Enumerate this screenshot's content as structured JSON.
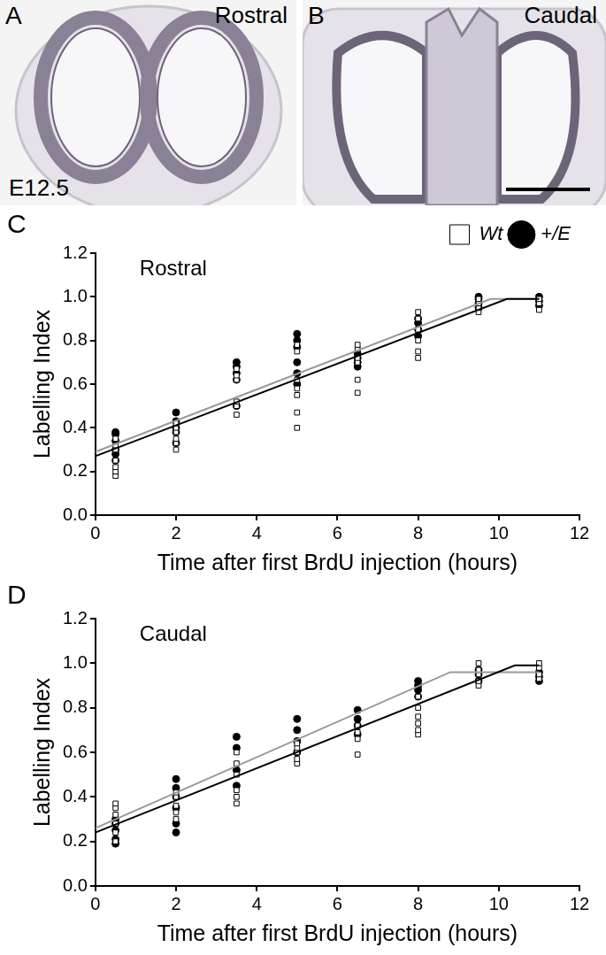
{
  "panels": [
    {
      "panel": "A",
      "label": "Rostral",
      "stage": "E12.5"
    },
    {
      "panel": "B",
      "label": "Caudal"
    }
  ],
  "chart_data": [
    {
      "panel": "C",
      "type": "scatter",
      "title": "Rostral",
      "x_label": "Time after first BrdU injection (hours)",
      "y_label": "Labelling Index",
      "xlim": [
        0,
        12
      ],
      "xticks": [
        0,
        2,
        4,
        6,
        8,
        10,
        12
      ],
      "ylim": [
        0,
        1.2
      ],
      "yticks": [
        {
          "value": 0,
          "label": "0.0"
        },
        0.2,
        0.4,
        0.6,
        0.8,
        {
          "value": 1,
          "label": "1.0"
        },
        1.2
      ],
      "grid": false,
      "legend": "top right",
      "series": [
        {
          "name": "Wt",
          "color": "#000000",
          "marker": "open_square",
          "x": [
            0.5,
            0.5,
            0.5,
            0.5,
            0.5,
            0.5,
            0.5,
            2,
            2,
            2,
            2,
            2,
            2,
            3.5,
            3.5,
            3.5,
            3.5,
            3.5,
            3.5,
            5,
            5,
            5,
            5,
            5,
            5,
            5,
            6.5,
            6.5,
            6.5,
            6.5,
            6.5,
            6.5,
            8,
            8,
            8,
            8,
            8,
            8,
            9.5,
            9.5,
            9.5,
            9.5,
            11,
            11,
            11
          ],
          "values": [
            0.18,
            0.2,
            0.22,
            0.25,
            0.3,
            0.32,
            0.35,
            0.3,
            0.33,
            0.35,
            0.38,
            0.4,
            0.42,
            0.46,
            0.5,
            0.52,
            0.62,
            0.64,
            0.67,
            0.4,
            0.47,
            0.55,
            0.58,
            0.62,
            0.75,
            0.78,
            0.56,
            0.62,
            0.7,
            0.72,
            0.76,
            0.78,
            0.72,
            0.75,
            0.8,
            0.85,
            0.9,
            0.93,
            0.93,
            0.95,
            0.97,
            0.99,
            0.94,
            0.97,
            0.99
          ]
        },
        {
          "name": "+/E",
          "color": "#000000",
          "marker": "filled_circle",
          "x": [
            0.5,
            0.5,
            0.5,
            0.5,
            0.5,
            0.5,
            2,
            2,
            2,
            2,
            2,
            3.5,
            3.5,
            3.5,
            3.5,
            3.5,
            5,
            5,
            5,
            5,
            5,
            5,
            6.5,
            6.5,
            6.5,
            6.5,
            8,
            8,
            8,
            8,
            9.5,
            9.5,
            9.5,
            9.5,
            11,
            11,
            11
          ],
          "values": [
            0.25,
            0.28,
            0.3,
            0.34,
            0.37,
            0.38,
            0.33,
            0.38,
            0.4,
            0.43,
            0.47,
            0.5,
            0.62,
            0.65,
            0.68,
            0.7,
            0.6,
            0.65,
            0.7,
            0.77,
            0.8,
            0.83,
            0.68,
            0.7,
            0.72,
            0.74,
            0.82,
            0.85,
            0.88,
            0.9,
            0.95,
            0.97,
            0.99,
            1.0,
            0.96,
            0.98,
            1.0
          ]
        },
        {
          "type": "line",
          "color": "#000000",
          "x": [
            0,
            10.2,
            11
          ],
          "values": [
            0.27,
            0.99,
            0.99
          ]
        },
        {
          "type": "line",
          "color": "#999999",
          "x": [
            0,
            9.8,
            11
          ],
          "values": [
            0.29,
            0.99,
            0.99
          ]
        }
      ]
    },
    {
      "panel": "D",
      "type": "scatter",
      "title": "Caudal",
      "x_label": "Time after first BrdU injection (hours)",
      "y_label": "Labelling Index",
      "xlim": [
        0,
        12
      ],
      "xticks": [
        0,
        2,
        4,
        6,
        8,
        10,
        12
      ],
      "ylim": [
        0,
        1.2
      ],
      "yticks": [
        {
          "value": 0,
          "label": "0.0"
        },
        0.2,
        0.4,
        0.6,
        0.8,
        {
          "value": 1,
          "label": "1.0"
        },
        1.2
      ],
      "grid": false,
      "series": [
        {
          "name": "Wt",
          "color": "#000000",
          "marker": "open_square",
          "x": [
            0.5,
            0.5,
            0.5,
            0.5,
            0.5,
            0.5,
            2,
            2,
            2,
            2,
            2,
            3.5,
            3.5,
            3.5,
            3.5,
            3.5,
            3.5,
            5,
            5,
            5,
            5,
            5,
            6.5,
            6.5,
            6.5,
            6.5,
            8,
            8,
            8,
            8,
            8,
            8,
            9.5,
            9.5,
            9.5,
            9.5,
            9.5,
            11,
            11,
            11,
            11
          ],
          "values": [
            0.2,
            0.24,
            0.28,
            0.32,
            0.35,
            0.37,
            0.3,
            0.33,
            0.36,
            0.4,
            0.42,
            0.37,
            0.4,
            0.43,
            0.5,
            0.55,
            0.6,
            0.55,
            0.57,
            0.6,
            0.62,
            0.64,
            0.59,
            0.66,
            0.69,
            0.72,
            0.68,
            0.7,
            0.73,
            0.76,
            0.8,
            0.85,
            0.9,
            0.92,
            0.95,
            0.97,
            1.0,
            0.93,
            0.95,
            0.98,
            1.0
          ]
        },
        {
          "name": "+/E",
          "color": "#000000",
          "marker": "filled_circle",
          "x": [
            0.5,
            0.5,
            0.5,
            0.5,
            0.5,
            2,
            2,
            2,
            2,
            2,
            2,
            3.5,
            3.5,
            3.5,
            3.5,
            5,
            5,
            5,
            5,
            6.5,
            6.5,
            6.5,
            6.5,
            8,
            8,
            8,
            8,
            9.5,
            9.5,
            9.5,
            11,
            11,
            11
          ],
          "values": [
            0.19,
            0.21,
            0.25,
            0.28,
            0.3,
            0.24,
            0.28,
            0.35,
            0.4,
            0.44,
            0.48,
            0.45,
            0.52,
            0.62,
            0.67,
            0.6,
            0.65,
            0.7,
            0.75,
            0.68,
            0.72,
            0.75,
            0.79,
            0.85,
            0.88,
            0.9,
            0.92,
            0.92,
            0.95,
            0.97,
            0.92,
            0.94,
            0.96
          ]
        },
        {
          "type": "line",
          "color": "#000000",
          "x": [
            0,
            10.4,
            11
          ],
          "values": [
            0.24,
            0.99,
            0.99
          ]
        },
        {
          "type": "line",
          "color": "#999999",
          "x": [
            0,
            8.8,
            11
          ],
          "values": [
            0.26,
            0.96,
            0.96
          ]
        }
      ]
    }
  ]
}
